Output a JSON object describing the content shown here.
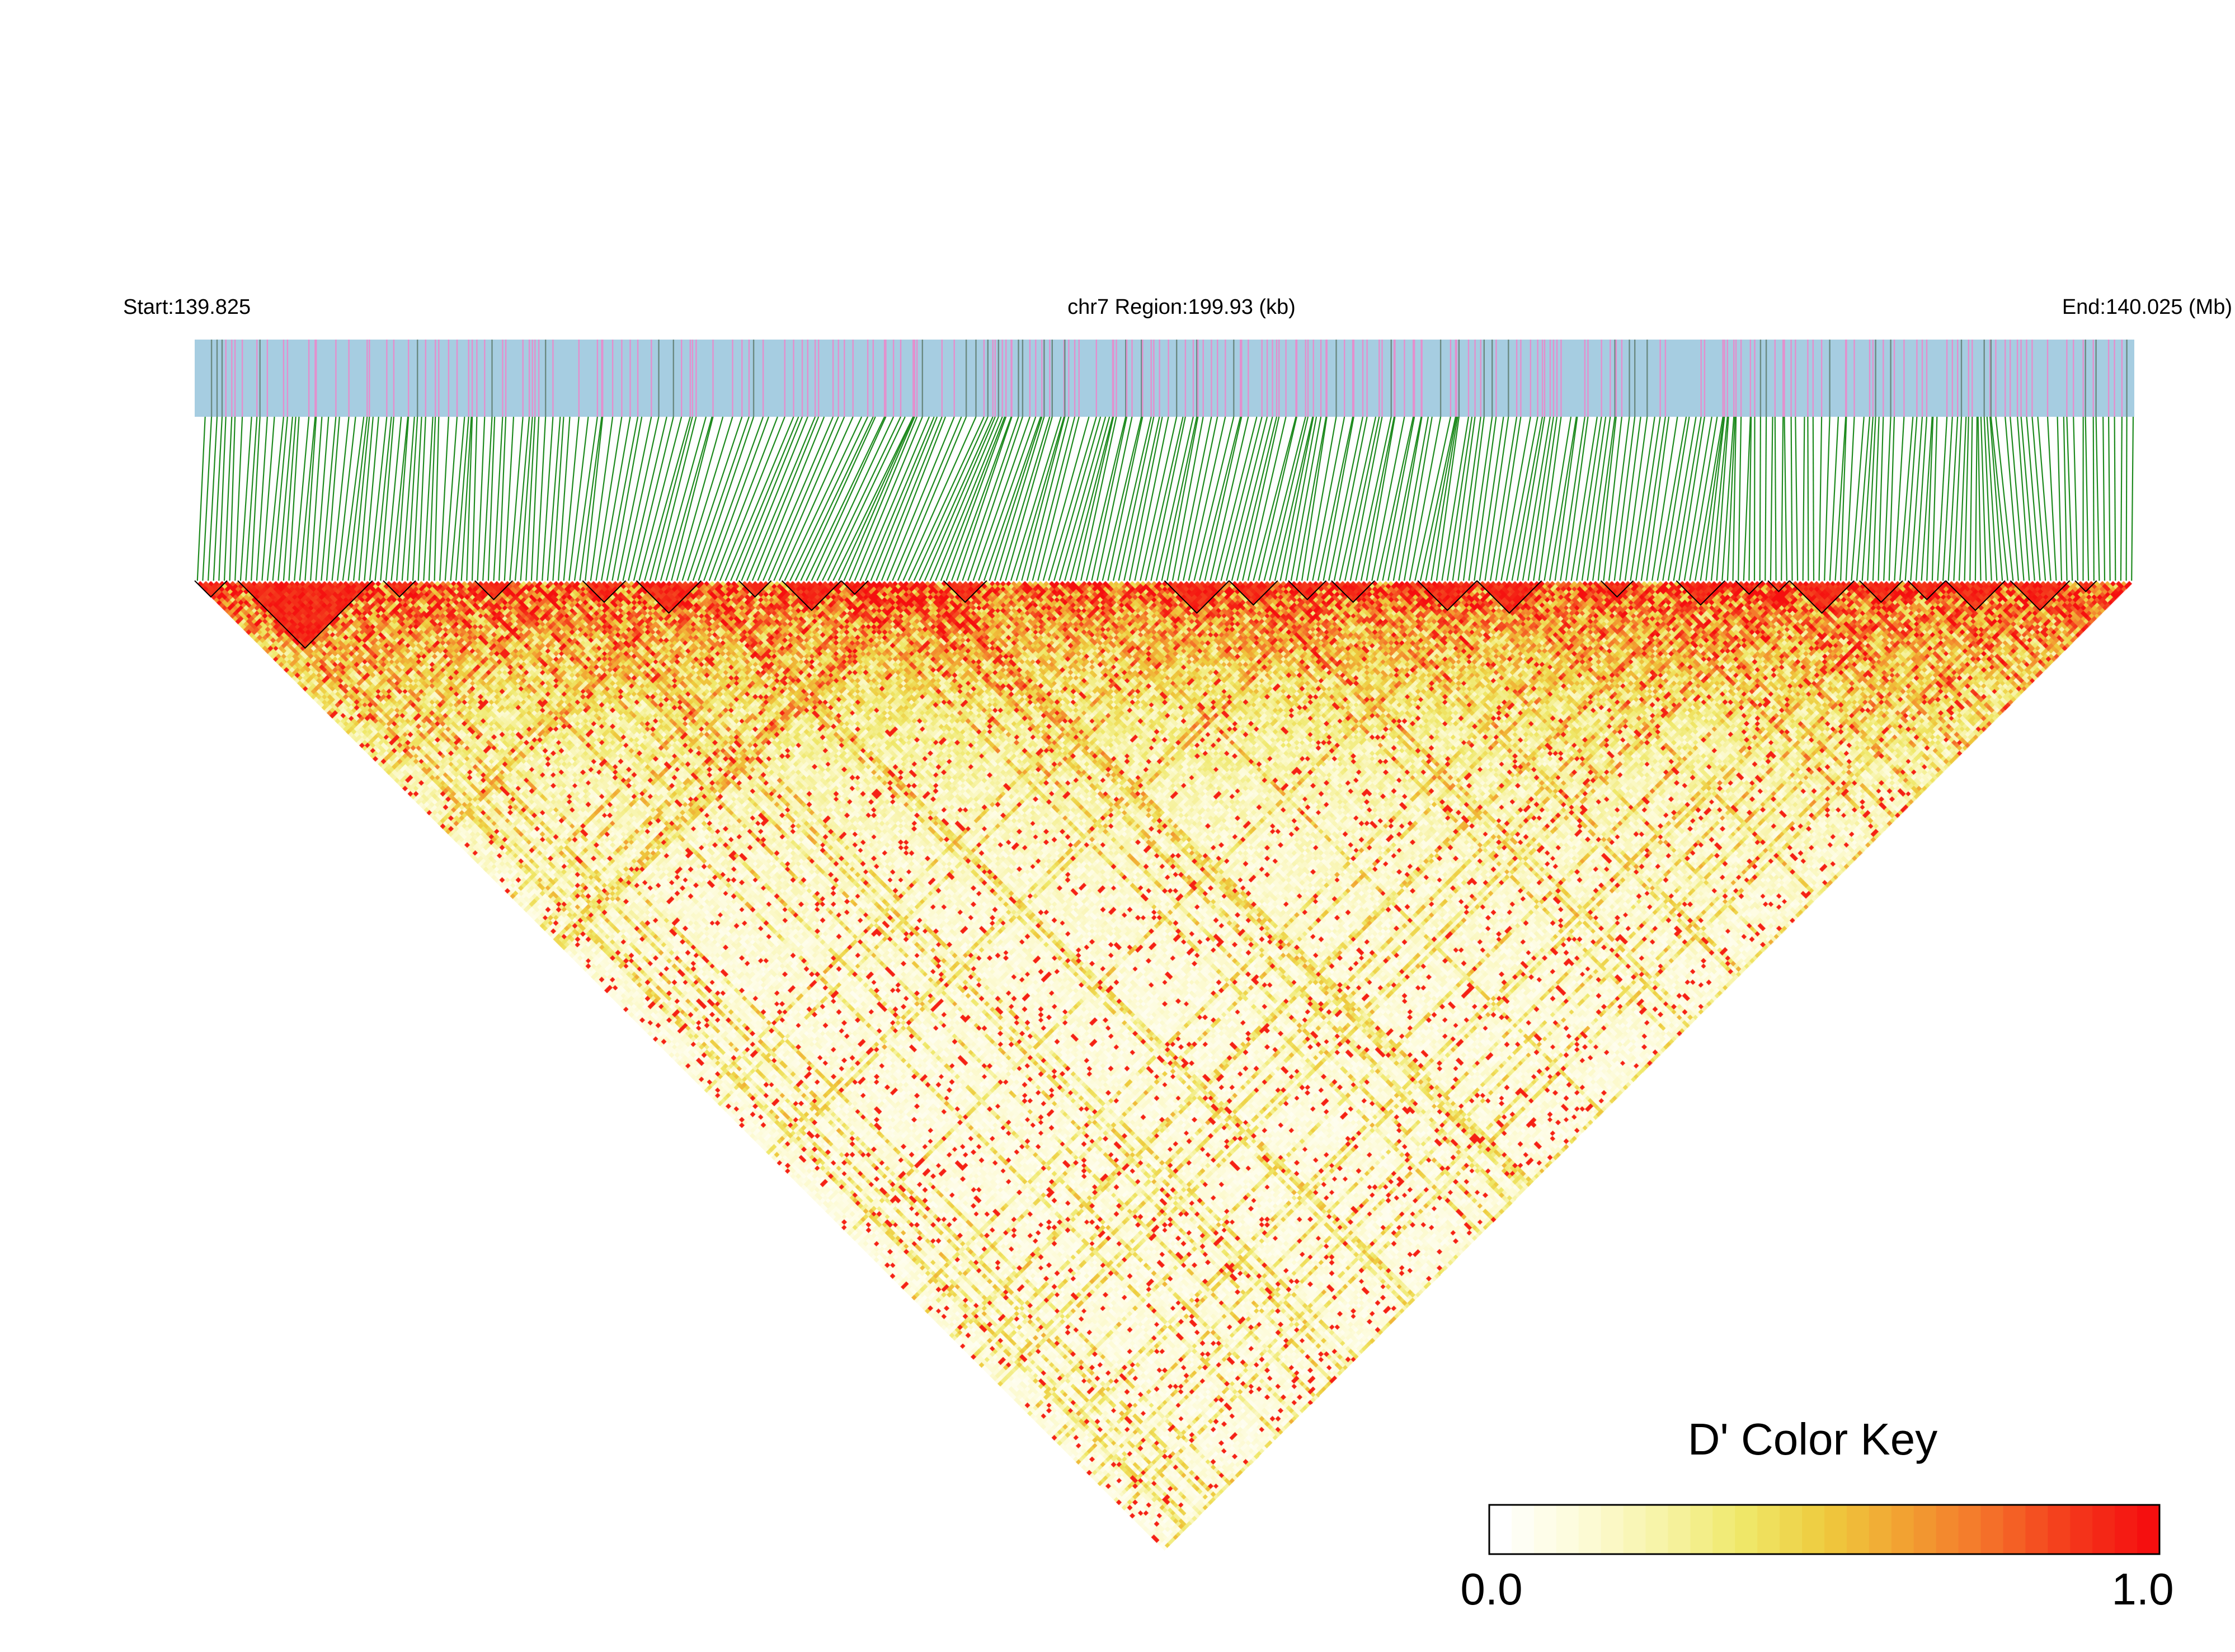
{
  "chart_data": {
    "type": "heatmap",
    "subtype": "linkage-disequilibrium-triangle",
    "header": {
      "start_label": "Start:139.825",
      "region_label": "chr7 Region:199.93 (kb)",
      "end_label": "End:140.025 (Mb)"
    },
    "region": {
      "chromosome": "chr7",
      "start_mb": 139.825,
      "end_mb": 140.025,
      "length_kb": 199.93
    },
    "variant_count": 360,
    "track_colors": {
      "background": "#a6cde1",
      "variant_a": "#e48fcd",
      "variant_b": "#6b8a82"
    },
    "connector_color": "#1e8a1e",
    "heatmap_palette": [
      "#ffffff",
      "#fdfbd8",
      "#f7f3a6",
      "#efe86a",
      "#eecb3e",
      "#f2a132",
      "#f4732a",
      "#f43b1c",
      "#f50f0f"
    ],
    "color_key": {
      "title": "D' Color Key",
      "min_label": "0.0",
      "max_label": "1.0",
      "range": [
        0.0,
        1.0
      ],
      "gradient": [
        "#ffffff",
        "#fbf9d0",
        "#f3ee90",
        "#ece64a",
        "#eec53a",
        "#f19e33",
        "#f4742b",
        "#f44621",
        "#f51712"
      ]
    },
    "haplotype_blocks_note": "",
    "value_range": [
      0,
      1
    ]
  }
}
